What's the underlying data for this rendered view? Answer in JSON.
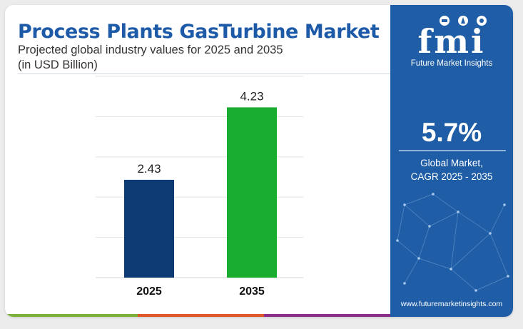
{
  "header": {
    "title": "Process Plants GasTurbine Market",
    "subtitle_line1": "Projected global industry values for 2025 and 2035",
    "subtitle_line2": "(in USD Billion)"
  },
  "chart_data": {
    "type": "bar",
    "categories": [
      "2025",
      "2035"
    ],
    "values": [
      2.43,
      4.23
    ],
    "colors": [
      "#0d3a73",
      "#19ad2f"
    ],
    "ylim": [
      0,
      5
    ],
    "grid": true
  },
  "sidebar": {
    "logo_text": "fmi",
    "logo_tagline": "Future Market Insights",
    "cagr_value": "5.7%",
    "cagr_label_line1": "Global Market,",
    "cagr_label_line2": "CAGR 2025 - 2035",
    "website": "www.futuremarketinsights.com"
  },
  "theme": {
    "title_color": "#1d5aa8",
    "sidebar_color": "#1f5ea6",
    "accent_colors": [
      "#7ab03b",
      "#e0572b",
      "#8b2f8d"
    ]
  }
}
